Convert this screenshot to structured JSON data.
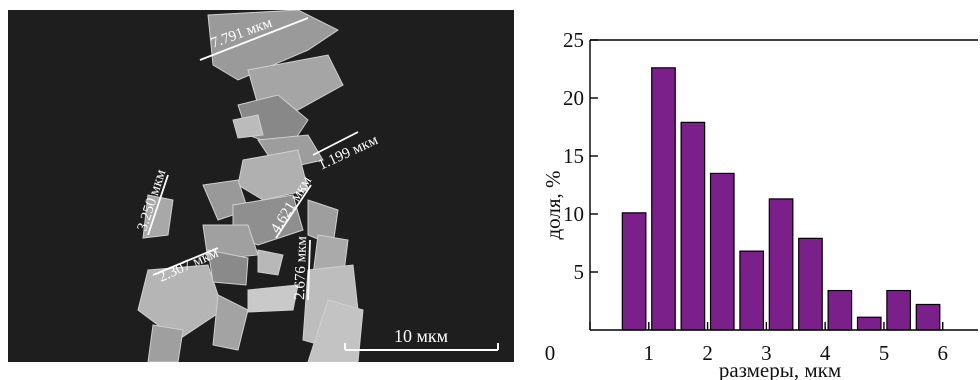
{
  "micrograph": {
    "scale_bar_label": "10 мкм",
    "measurements": [
      "7.791 мкм",
      "1.199 мкм",
      "3.250 мкм",
      "4.621 мкм",
      "2.307 мкм",
      "2.676 мкм"
    ]
  },
  "chart_data": {
    "type": "bar",
    "xlabel": "размеры, мкм",
    "ylabel": "доля, %",
    "xlim": [
      0,
      6.6
    ],
    "ylim": [
      0,
      25
    ],
    "xticks": [
      0,
      1,
      2,
      3,
      4,
      5,
      6
    ],
    "yticks": [
      5,
      10,
      15,
      20,
      25
    ],
    "bar_width": 0.4,
    "x": [
      0.75,
      1.25,
      1.75,
      2.25,
      2.75,
      3.25,
      3.75,
      4.25,
      4.75,
      5.25,
      5.75
    ],
    "values": [
      10.1,
      22.6,
      17.9,
      13.5,
      6.8,
      11.3,
      7.9,
      3.4,
      1.1,
      3.4,
      2.2
    ],
    "bar_color": "#7b1f8a",
    "grid": false
  }
}
